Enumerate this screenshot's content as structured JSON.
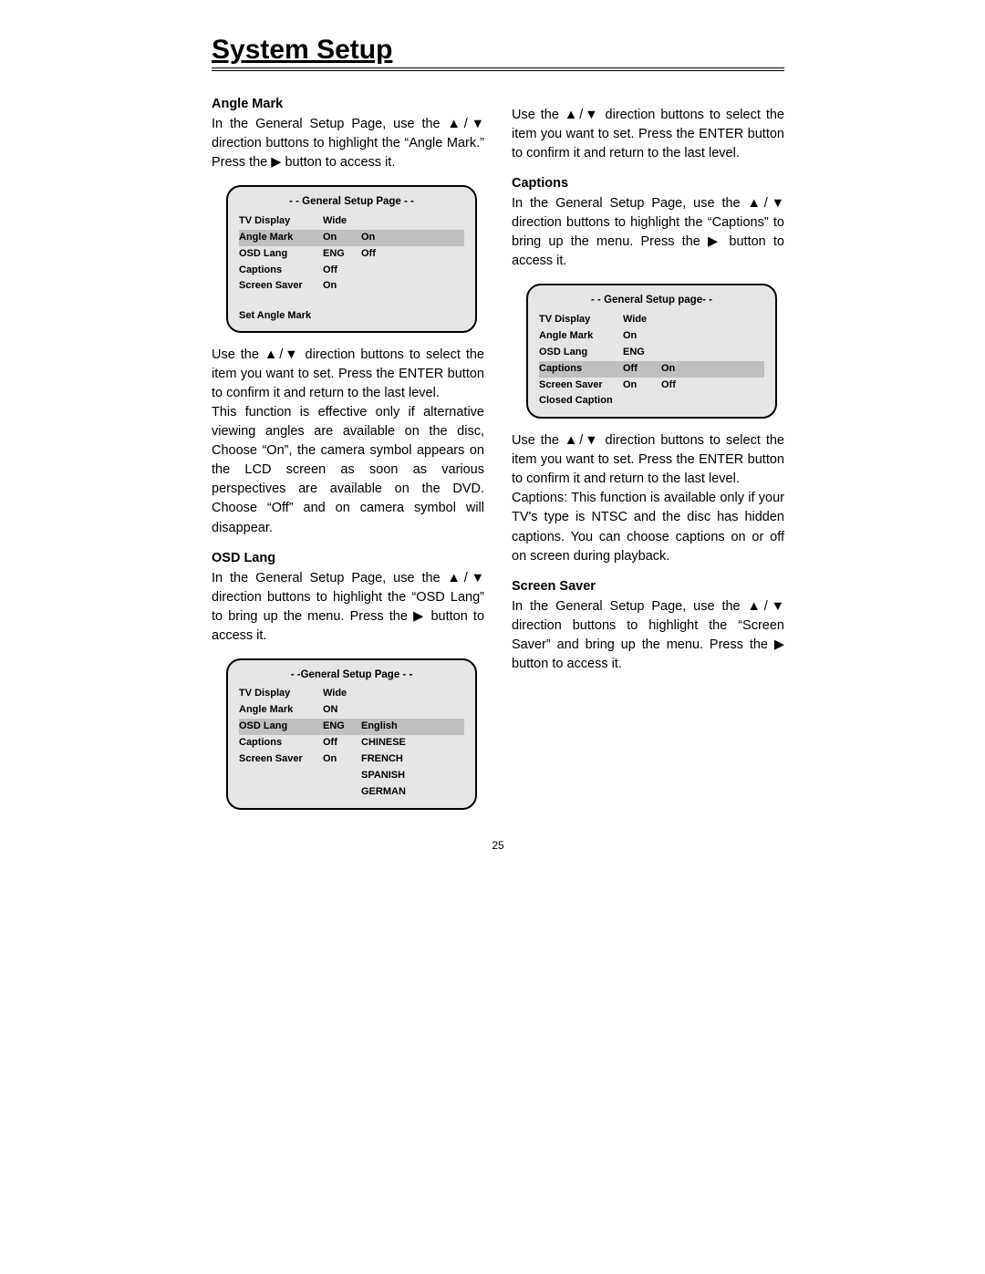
{
  "title": "System Setup",
  "page_number": "25",
  "symbols": {
    "updown": "▲/▼",
    "right": "▶"
  },
  "left": {
    "angle_mark": {
      "heading": "Angle Mark",
      "p1a": "In the General Setup Page, use the ",
      "p1b": " direction buttons to highlight the “Angle Mark.” Press the ",
      "p1c": " button to access it.",
      "p2a": "Use the ",
      "p2b": " direction buttons to select the item you want to set. Press the ENTER button to confirm it and return to the last level.",
      "p3": "This function is effective only if alternative viewing angles are available on the disc, Choose “On”, the camera symbol appears on the LCD screen as soon as various perspectives are available on the DVD. Choose “Off” and on camera symbol will disappear."
    },
    "osd_lang": {
      "heading": "OSD Lang",
      "p1a": "In the General Setup Page, use the ",
      "p1b": " direction buttons to highlight the “OSD Lang” to bring up the menu. Press the ",
      "p1c": " button to access it."
    }
  },
  "right": {
    "intro": {
      "p1a": "Use the ",
      "p1b": " direction buttons to select the item you want to set. Press the ENTER button to confirm it and return to the last level."
    },
    "captions": {
      "heading": "Captions",
      "p1a": "In the General Setup Page, use the ",
      "p1b": " direction buttons to highlight the “Captions” to bring up the menu. Press the ",
      "p1c": " button to access it.",
      "p2a": "Use the ",
      "p2b": " direction buttons to select the item you want to set. Press the ENTER button to confirm it and return to the last level.",
      "p3": "Captions: This function is available only if your TV's type is NTSC and the disc has hidden captions. You can choose captions on or off on screen during playback."
    },
    "screen_saver": {
      "heading": "Screen Saver",
      "p1a": "In the General Setup Page, use the ",
      "p1b": " direction buttons to highlight the “Screen Saver” and bring up the menu. Press the ",
      "p1c": " button to access it."
    }
  },
  "menu1": {
    "title": "- - General Setup Page - -",
    "rows": [
      {
        "label": "TV Display",
        "val": "Wide",
        "opt": "",
        "hl": false
      },
      {
        "label": "Angle Mark",
        "val": "On",
        "opt": "On",
        "hl": true
      },
      {
        "label": "OSD Lang",
        "val": "ENG",
        "opt": "Off",
        "hl": false
      },
      {
        "label": "Captions",
        "val": "Off",
        "opt": "",
        "hl": false
      },
      {
        "label": "Screen Saver",
        "val": "On",
        "opt": "",
        "hl": false
      }
    ],
    "footer": "Set Angle Mark"
  },
  "menu2": {
    "title": "- -General Setup Page - -",
    "rows": [
      {
        "label": "TV Display",
        "val": "Wide",
        "opt": "",
        "hl": false
      },
      {
        "label": "Angle Mark",
        "val": "ON",
        "opt": "",
        "hl": false
      },
      {
        "label": "OSD Lang",
        "val": "ENG",
        "opt": "English",
        "hl": true
      },
      {
        "label": "Captions",
        "val": "Off",
        "opt": "CHINESE",
        "hl": false
      },
      {
        "label": "Screen Saver",
        "val": "On",
        "opt": "FRENCH",
        "hl": false
      },
      {
        "label": "",
        "val": "",
        "opt": "SPANISH",
        "hl": false
      },
      {
        "label": "",
        "val": "",
        "opt": "GERMAN",
        "hl": false
      }
    ]
  },
  "menu3": {
    "title": "- - General Setup page- -",
    "rows": [
      {
        "label": "TV Display",
        "val": "Wide",
        "opt": "",
        "hl": false
      },
      {
        "label": "Angle Mark",
        "val": "On",
        "opt": "",
        "hl": false
      },
      {
        "label": "OSD Lang",
        "val": "ENG",
        "opt": "",
        "hl": false
      },
      {
        "label": "Captions",
        "val": "Off",
        "opt": "On",
        "hl": true
      },
      {
        "label": "Screen Saver",
        "val": "On",
        "opt": "Off",
        "hl": false
      },
      {
        "label": "Closed Caption",
        "val": "",
        "opt": "",
        "hl": false
      }
    ]
  }
}
